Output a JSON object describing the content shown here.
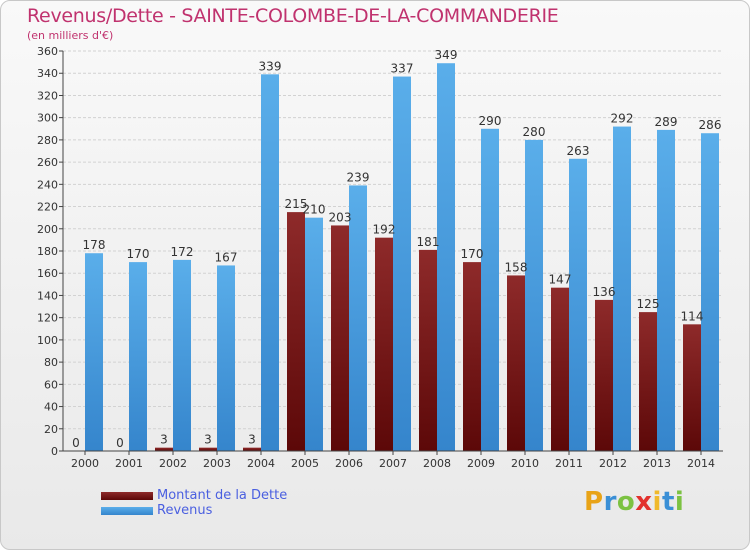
{
  "title": "Revenus/Dette - SAINTE-COLOMBE-DE-LA-COMMANDERIE",
  "subtitle": "(en milliers d'€)",
  "logo": {
    "letters": [
      "P",
      "r",
      "o",
      "x",
      "i",
      "t",
      "i"
    ],
    "colors": [
      "#e8a317",
      "#3a8fd6",
      "#7cc242",
      "#e2312d",
      "#f0b92b",
      "#3a8fd6",
      "#7cc242"
    ]
  },
  "chart_data": {
    "type": "bar",
    "title": "Revenus/Dette - SAINTE-COLOMBE-DE-LA-COMMANDERIE",
    "ylabel": "(en milliers d'€)",
    "categories": [
      "2000",
      "2001",
      "2002",
      "2003",
      "2004",
      "2005",
      "2006",
      "2007",
      "2008",
      "2009",
      "2010",
      "2011",
      "2012",
      "2013",
      "2014"
    ],
    "series": [
      {
        "name": "Montant de la Dette",
        "color": "#7a1414",
        "values": [
          0,
          0,
          3,
          3,
          3,
          215,
          203,
          192,
          181,
          170,
          158,
          147,
          136,
          125,
          114
        ],
        "labels": [
          "0",
          "0",
          "3",
          "3",
          "3",
          "215",
          "203",
          "192",
          "181",
          "170",
          "158",
          "147",
          "136",
          "125",
          "114"
        ]
      },
      {
        "name": "Revenus",
        "color": "#4ea2e2",
        "values": [
          178,
          170,
          172,
          167,
          339,
          210,
          239,
          337,
          349,
          290,
          280,
          263,
          292,
          289,
          286
        ],
        "labels": [
          "178",
          "170",
          "172",
          "167",
          "339",
          "210",
          "239",
          "337",
          "349",
          "290",
          "280",
          "263",
          "292",
          "289",
          "286"
        ]
      }
    ],
    "ylim": [
      0,
      360
    ],
    "yticks": [
      "0",
      "20",
      "40",
      "60",
      "80",
      "100",
      "120",
      "140",
      "160",
      "180",
      "200",
      "220",
      "240",
      "260",
      "280",
      "300",
      "320",
      "340",
      "360"
    ],
    "grid": true,
    "legend": "bottom-left"
  }
}
